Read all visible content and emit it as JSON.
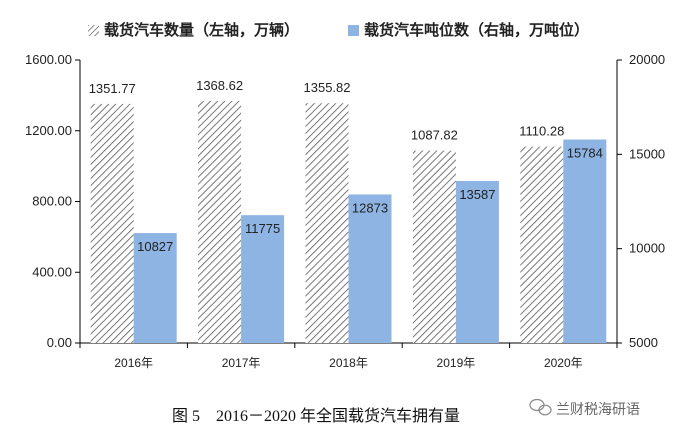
{
  "chart_data": {
    "type": "bar",
    "categories": [
      "2016年",
      "2017年",
      "2018年",
      "2019年",
      "2020年"
    ],
    "series": [
      {
        "name": "载货汽车数量（左轴，万辆）",
        "axis": "left",
        "values": [
          1351.77,
          1368.62,
          1355.82,
          1087.82,
          1110.28
        ],
        "labels": [
          "1351.77",
          "1368.62",
          "1355.82",
          "1087.82",
          "1110.28"
        ],
        "pattern": "diagonal-hatch",
        "color": "#555555"
      },
      {
        "name": "载货汽车吨位数（右轴，万吨位）",
        "axis": "right",
        "values": [
          10827,
          11775,
          12873,
          13587,
          15784
        ],
        "labels": [
          "10827",
          "11775",
          "12873",
          "13587",
          "15784"
        ],
        "color": "#8eb4e3"
      }
    ],
    "y_left": {
      "min": 0,
      "max": 1600,
      "ticks": [
        0,
        400,
        800,
        1200,
        1600
      ],
      "tick_labels": [
        "0.00",
        "400.00",
        "800.00",
        "1200.00",
        "1600.00"
      ]
    },
    "y_right": {
      "min": 5000,
      "max": 20000,
      "ticks": [
        5000,
        10000,
        15000,
        20000
      ],
      "tick_labels": [
        "5000",
        "10000",
        "15000",
        "20000"
      ]
    },
    "grid": false,
    "legend_position": "top"
  },
  "caption": "图 5　2016－2020 年全国载货汽车拥有量",
  "watermark": "兰财税海研语"
}
